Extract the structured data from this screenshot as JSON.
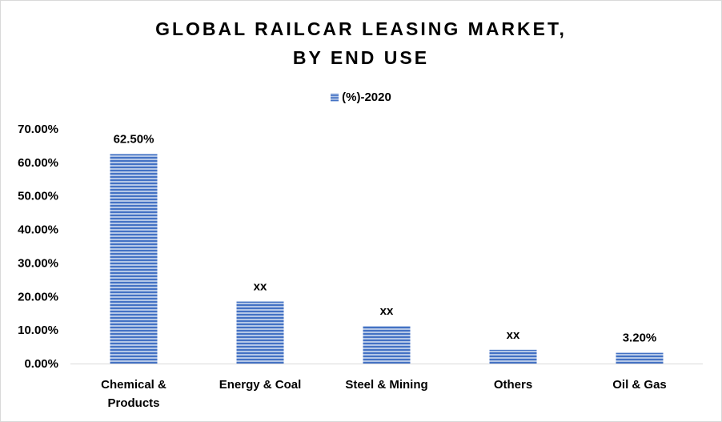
{
  "chart_data": {
    "type": "bar",
    "title_lines": [
      "GLOBAL RAILCAR LEASING MARKET,",
      "BY END USE"
    ],
    "legend_position": "top",
    "series": [
      {
        "name": "(%)-2020",
        "values": [
          62.5,
          18.5,
          11.2,
          4.1,
          3.2
        ],
        "color": "#4472c4"
      }
    ],
    "categories": [
      [
        "Chemical &",
        "Products"
      ],
      [
        "Energy & Coal"
      ],
      [
        "Steel & Mining"
      ],
      [
        "Others"
      ],
      [
        "Oil & Gas"
      ]
    ],
    "data_labels": [
      "62.50%",
      "xx",
      "xx",
      "xx",
      "3.20%"
    ],
    "y_ticks": [
      "0.00%",
      "10.00%",
      "20.00%",
      "30.00%",
      "40.00%",
      "50.00%",
      "60.00%",
      "70.00%"
    ],
    "ylim": [
      0,
      70
    ],
    "grid": false,
    "xlabel": "",
    "ylabel": ""
  }
}
